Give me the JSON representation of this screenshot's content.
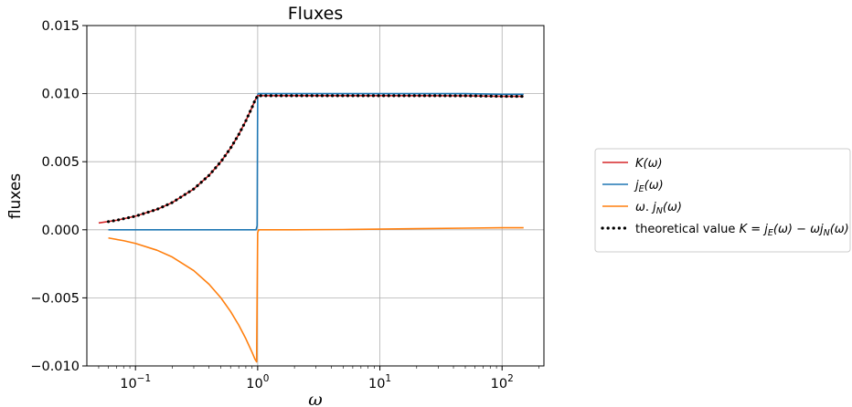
{
  "chart_data": {
    "type": "line",
    "title": "Fluxes",
    "xlabel": "ω",
    "ylabel": "fluxes",
    "xscale": "log",
    "xlim": [
      0.04,
      220
    ],
    "ylim": [
      -0.01,
      0.015
    ],
    "grid": true,
    "legend_position": "right-outside",
    "x_ticks": [
      {
        "value": 0.1,
        "base": "10",
        "exp": "−1"
      },
      {
        "value": 1,
        "base": "10",
        "exp": "0"
      },
      {
        "value": 10,
        "base": "10",
        "exp": "1"
      },
      {
        "value": 100,
        "base": "10",
        "exp": "2"
      }
    ],
    "y_ticks": [
      {
        "value": -0.01,
        "label": "−0.010"
      },
      {
        "value": -0.005,
        "label": "−0.005"
      },
      {
        "value": 0.0,
        "label": "0.000"
      },
      {
        "value": 0.005,
        "label": "0.005"
      },
      {
        "value": 0.01,
        "label": "0.010"
      },
      {
        "value": 0.015,
        "label": "0.015"
      }
    ],
    "series": [
      {
        "name": "K(ω)",
        "legend": [
          {
            "t": "K",
            "i": true
          },
          {
            "t": "(ω)",
            "i": true
          }
        ],
        "color": "#d62728",
        "style": "solid",
        "x": [
          0.05,
          0.07,
          0.1,
          0.15,
          0.2,
          0.3,
          0.4,
          0.5,
          0.6,
          0.7,
          0.8,
          0.9,
          0.95,
          1.0,
          2,
          5,
          10,
          20,
          50,
          100,
          150
        ],
        "y": [
          0.0005,
          0.0007,
          0.001,
          0.0015,
          0.002,
          0.003,
          0.004,
          0.005,
          0.006,
          0.007,
          0.008,
          0.009,
          0.0095,
          0.00985,
          0.00985,
          0.00985,
          0.00985,
          0.00985,
          0.00984,
          0.0098,
          0.0098
        ]
      },
      {
        "name": "j_E(ω)",
        "legend": [
          {
            "t": "j",
            "i": true
          },
          {
            "t": "E",
            "i": true,
            "sub": true
          },
          {
            "t": "(ω)",
            "i": true
          }
        ],
        "color": "#1f77b4",
        "style": "solid",
        "x": [
          0.06,
          0.1,
          0.5,
          0.9,
          0.97,
          0.99,
          1.0,
          1.01,
          2,
          5,
          10,
          20,
          50,
          100,
          150
        ],
        "y": [
          0.0,
          0.0,
          0.0,
          0.0,
          0.0,
          0.0003,
          0.0099,
          0.01,
          0.01,
          0.01,
          0.01,
          0.01,
          0.01,
          0.00995,
          0.00995
        ]
      },
      {
        "name": "ω. j_N(ω)",
        "legend": [
          {
            "t": "ω",
            "i": true
          },
          {
            "t": ". ",
            "i": false
          },
          {
            "t": "j",
            "i": true
          },
          {
            "t": "N",
            "i": true,
            "sub": true
          },
          {
            "t": "(ω)",
            "i": true
          }
        ],
        "color": "#ff7f0e",
        "style": "solid",
        "x": [
          0.06,
          0.08,
          0.1,
          0.15,
          0.2,
          0.3,
          0.4,
          0.5,
          0.6,
          0.7,
          0.8,
          0.9,
          0.95,
          0.98,
          1.0,
          1.02,
          2,
          5,
          10,
          20,
          50,
          100,
          150
        ],
        "y": [
          -0.0006,
          -0.0008,
          -0.001,
          -0.0015,
          -0.002,
          -0.003,
          -0.004,
          -0.005,
          -0.006,
          -0.007,
          -0.008,
          -0.009,
          -0.0095,
          -0.0097,
          -0.0002,
          0.0,
          0.0,
          2e-05,
          5e-05,
          8e-05,
          0.00012,
          0.00015,
          0.00015
        ]
      },
      {
        "name": "theoretical value K = j_E(ω) − ωj_N(ω)",
        "legend": [
          {
            "t": "theoretical value ",
            "i": false
          },
          {
            "t": "K",
            "i": true
          },
          {
            "t": " = ",
            "i": false
          },
          {
            "t": "j",
            "i": true
          },
          {
            "t": "E",
            "i": true,
            "sub": true
          },
          {
            "t": "(ω)",
            "i": true
          },
          {
            "t": " − ",
            "i": false
          },
          {
            "t": "ωj",
            "i": true
          },
          {
            "t": "N",
            "i": true,
            "sub": true
          },
          {
            "t": "(ω)",
            "i": true
          }
        ],
        "color": "#000000",
        "style": "dotted",
        "x": [
          0.06,
          0.07,
          0.1,
          0.15,
          0.2,
          0.3,
          0.4,
          0.5,
          0.6,
          0.7,
          0.8,
          0.9,
          0.95,
          1.0,
          2,
          5,
          10,
          20,
          50,
          100,
          150
        ],
        "y": [
          0.0006,
          0.0007,
          0.001,
          0.0015,
          0.002,
          0.003,
          0.004,
          0.005,
          0.006,
          0.007,
          0.008,
          0.009,
          0.0095,
          0.00985,
          0.00985,
          0.00985,
          0.00985,
          0.00985,
          0.00984,
          0.0098,
          0.0098
        ]
      }
    ]
  }
}
